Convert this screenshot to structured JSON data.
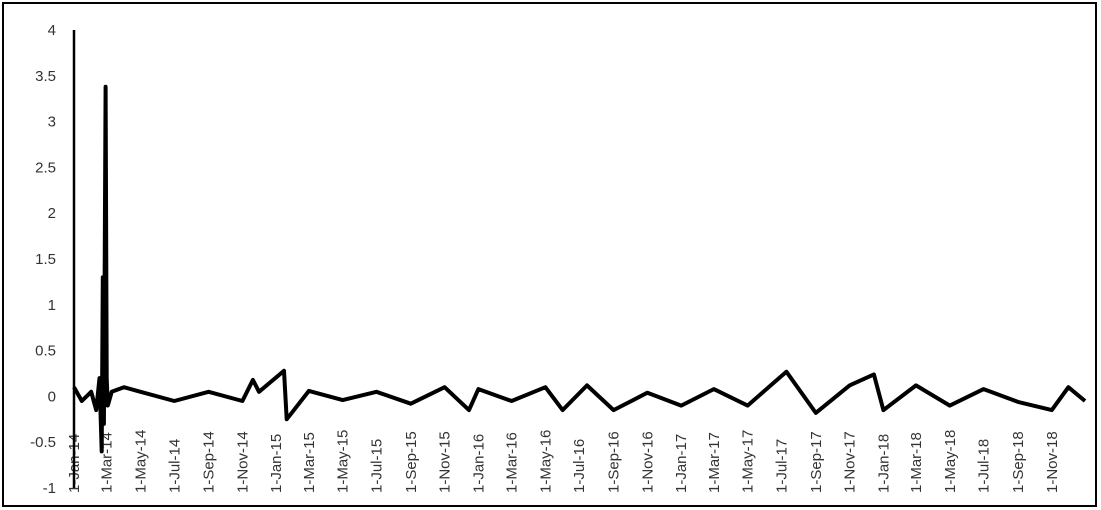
{
  "chart_data": {
    "type": "line",
    "title": "",
    "xlabel": "",
    "ylabel": "",
    "ylim": [
      -1,
      4
    ],
    "grid": false,
    "legend": "none",
    "line_color": "#000000",
    "y_ticks": [
      "-1",
      "-0.5",
      "0",
      "0.5",
      "1",
      "1.5",
      "2",
      "2.5",
      "3",
      "3.5",
      "4"
    ],
    "x_ticks": [
      "1-Jan-14",
      "1-Mar-14",
      "1-May-14",
      "1-Jul-14",
      "1-Sep-14",
      "1-Nov-14",
      "1-Jan-15",
      "1-Mar-15",
      "1-May-15",
      "1-Jul-15",
      "1-Sep-15",
      "1-Nov-15",
      "1-Jan-16",
      "1-Mar-16",
      "1-May-16",
      "1-Jul-16",
      "1-Sep-16",
      "1-Nov-16",
      "1-Jan-17",
      "1-Mar-17",
      "1-May-17",
      "1-Jul-17",
      "1-Sep-17",
      "1-Nov-17",
      "1-Jan-18",
      "1-Mar-18",
      "1-May-18",
      "1-Jul-18",
      "1-Sep-18",
      "1-Nov-18"
    ],
    "x_range": [
      "1-Jan-14",
      "31-Dec-18"
    ],
    "series": [
      {
        "x": [
          "1-Jan-14",
          "15-Jan-14",
          "1-Feb-14",
          "10-Feb-14",
          "16-Feb-14",
          "20-Feb-14",
          "22-Feb-14",
          "24-Feb-14",
          "27-Feb-14",
          "1-Mar-14",
          "3-Mar-14",
          "10-Mar-14",
          "1-Apr-14",
          "1-May-14",
          "1-Jul-14",
          "1-Sep-14",
          "1-Nov-14",
          "20-Nov-14",
          "1-Dec-14",
          "15-Jan-15",
          "20-Jan-15",
          "1-Mar-15",
          "1-May-15",
          "1-Jul-15",
          "1-Sep-15",
          "1-Nov-15",
          "15-Dec-15",
          "1-Jan-16",
          "1-Mar-16",
          "1-May-16",
          "1-Jun-16",
          "15-Jul-16",
          "1-Sep-16",
          "1-Nov-16",
          "1-Jan-17",
          "1-Mar-17",
          "1-May-17",
          "10-Jul-17",
          "1-Sep-17",
          "1-Nov-17",
          "15-Dec-17",
          "1-Jan-18",
          "1-Mar-18",
          "1-May-18",
          "1-Jul-18",
          "1-Sep-18",
          "1-Nov-18",
          "1-Dec-18",
          "31-Dec-18"
        ],
        "values": [
          0.1,
          -0.05,
          0.05,
          -0.15,
          0.2,
          -0.6,
          1.3,
          -0.3,
          3.38,
          0.2,
          -0.1,
          0.05,
          0.1,
          0.05,
          -0.05,
          0.05,
          -0.05,
          0.18,
          0.05,
          0.28,
          -0.25,
          0.06,
          -0.04,
          0.05,
          -0.08,
          0.1,
          -0.15,
          0.08,
          -0.05,
          0.1,
          -0.15,
          0.12,
          -0.15,
          0.04,
          -0.1,
          0.08,
          -0.1,
          0.27,
          -0.18,
          0.12,
          0.24,
          -0.15,
          0.12,
          -0.1,
          0.08,
          -0.06,
          -0.15,
          0.1,
          -0.05
        ]
      }
    ]
  }
}
